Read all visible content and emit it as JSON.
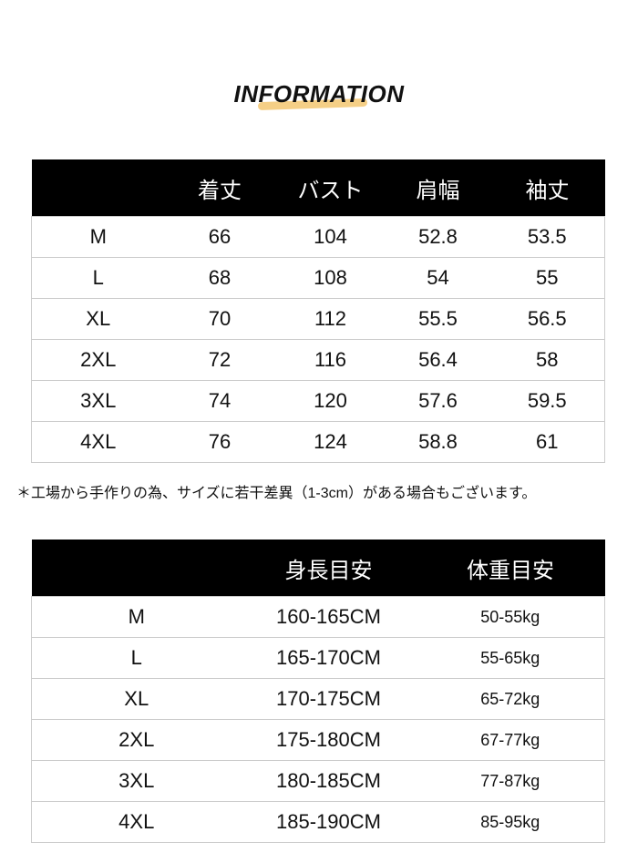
{
  "title": "INFORMATION",
  "accent_color": "#f5cf86",
  "table1": {
    "headers": [
      "",
      "着丈",
      "バスト",
      "肩幅",
      "袖丈"
    ],
    "rows": [
      [
        "M",
        "66",
        "104",
        "52.8",
        "53.5"
      ],
      [
        "L",
        "68",
        "108",
        "54",
        "55"
      ],
      [
        "XL",
        "70",
        "112",
        "55.5",
        "56.5"
      ],
      [
        "2XL",
        "72",
        "116",
        "56.4",
        "58"
      ],
      [
        "3XL",
        "74",
        "120",
        "57.6",
        "59.5"
      ],
      [
        "4XL",
        "76",
        "124",
        "58.8",
        "61"
      ]
    ]
  },
  "note": "＊工場から手作りの為、サイズに若干差異（1-3cm）がある場合もございます。",
  "table2": {
    "headers": [
      "",
      "身長目安",
      "体重目安"
    ],
    "rows": [
      [
        "M",
        "160-165CM",
        "50-55kg"
      ],
      [
        "L",
        "165-170CM",
        "55-65kg"
      ],
      [
        "XL",
        "170-175CM",
        "65-72kg"
      ],
      [
        "2XL",
        "175-180CM",
        "67-77kg"
      ],
      [
        "3XL",
        "180-185CM",
        "77-87kg"
      ],
      [
        "4XL",
        "185-190CM",
        "85-95kg"
      ]
    ]
  }
}
